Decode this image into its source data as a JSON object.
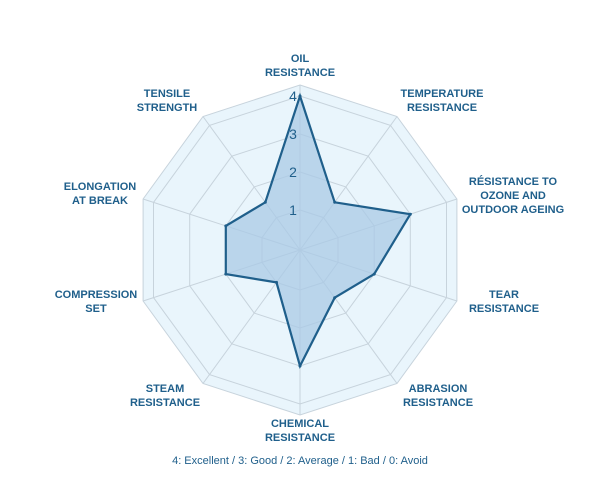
{
  "chart_data": {
    "type": "radar",
    "axes": [
      {
        "lines": [
          "OIL",
          "RESISTANCE"
        ],
        "value": 4
      },
      {
        "lines": [
          "TEMPERATURE",
          "RESISTANCE"
        ],
        "value": 1.5
      },
      {
        "lines": [
          "RÉSISTANCE TO",
          "OZONE AND",
          "OUTDOOR AGEING"
        ],
        "value": 3
      },
      {
        "lines": [
          "TEAR",
          "RESISTANCE"
        ],
        "value": 2
      },
      {
        "lines": [
          "ABRASION",
          "RESISTANCE"
        ],
        "value": 1.5
      },
      {
        "lines": [
          "CHEMICAL",
          "RESISTANCE"
        ],
        "value": 3
      },
      {
        "lines": [
          "STEAM",
          "RESISTANCE"
        ],
        "value": 1
      },
      {
        "lines": [
          "COMPRESSION",
          "SET"
        ],
        "value": 2
      },
      {
        "lines": [
          "ELONGATION",
          "AT BREAK"
        ],
        "value": 2
      },
      {
        "lines": [
          "TENSILE",
          "STRENGTH"
        ],
        "value": 1.5
      }
    ],
    "scale_ticks": [
      "1",
      "2",
      "3",
      "4"
    ],
    "range": [
      0,
      4
    ],
    "legend_note": "4: Excellent / 3: Good / 2: Average / 1: Bad / 0: Avoid",
    "colors": {
      "ring_fill": "#e9f5fc",
      "grid": "#c7d3dc",
      "series_fill": "#a9c9e6",
      "series_line": "#1f5f8b",
      "text": "#1f5f8b"
    }
  }
}
